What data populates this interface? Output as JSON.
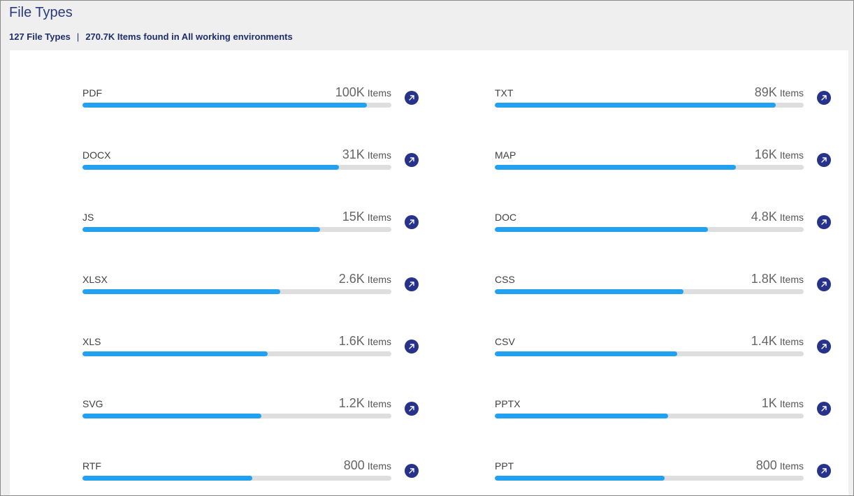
{
  "header": {
    "title": "File Types",
    "file_types_count": "127 File Types",
    "separator": "|",
    "items_summary": "270.7K Items found in All working environments"
  },
  "accent_color": "#21a1f0",
  "icon_button_color": "#27338a",
  "file_types": [
    {
      "name": "PDF",
      "count": "100K",
      "unit": "Items",
      "fill_fraction": 0.92
    },
    {
      "name": "TXT",
      "count": "89K",
      "unit": "Items",
      "fill_fraction": 0.91
    },
    {
      "name": "DOCX",
      "count": "31K",
      "unit": "Items",
      "fill_fraction": 0.83
    },
    {
      "name": "MAP",
      "count": "16K",
      "unit": "Items",
      "fill_fraction": 0.78
    },
    {
      "name": "JS",
      "count": "15K",
      "unit": "Items",
      "fill_fraction": 0.77
    },
    {
      "name": "DOC",
      "count": "4.8K",
      "unit": "Items",
      "fill_fraction": 0.69
    },
    {
      "name": "XLSX",
      "count": "2.6K",
      "unit": "Items",
      "fill_fraction": 0.64
    },
    {
      "name": "CSS",
      "count": "1.8K",
      "unit": "Items",
      "fill_fraction": 0.61
    },
    {
      "name": "XLS",
      "count": "1.6K",
      "unit": "Items",
      "fill_fraction": 0.6
    },
    {
      "name": "CSV",
      "count": "1.4K",
      "unit": "Items",
      "fill_fraction": 0.59
    },
    {
      "name": "SVG",
      "count": "1.2K",
      "unit": "Items",
      "fill_fraction": 0.58
    },
    {
      "name": "PPTX",
      "count": "1K",
      "unit": "Items",
      "fill_fraction": 0.56
    },
    {
      "name": "RTF",
      "count": "800",
      "unit": "Items",
      "fill_fraction": 0.55
    },
    {
      "name": "PPT",
      "count": "800",
      "unit": "Items",
      "fill_fraction": 0.55
    }
  ],
  "row_icon": "arrow-up-right-icon"
}
